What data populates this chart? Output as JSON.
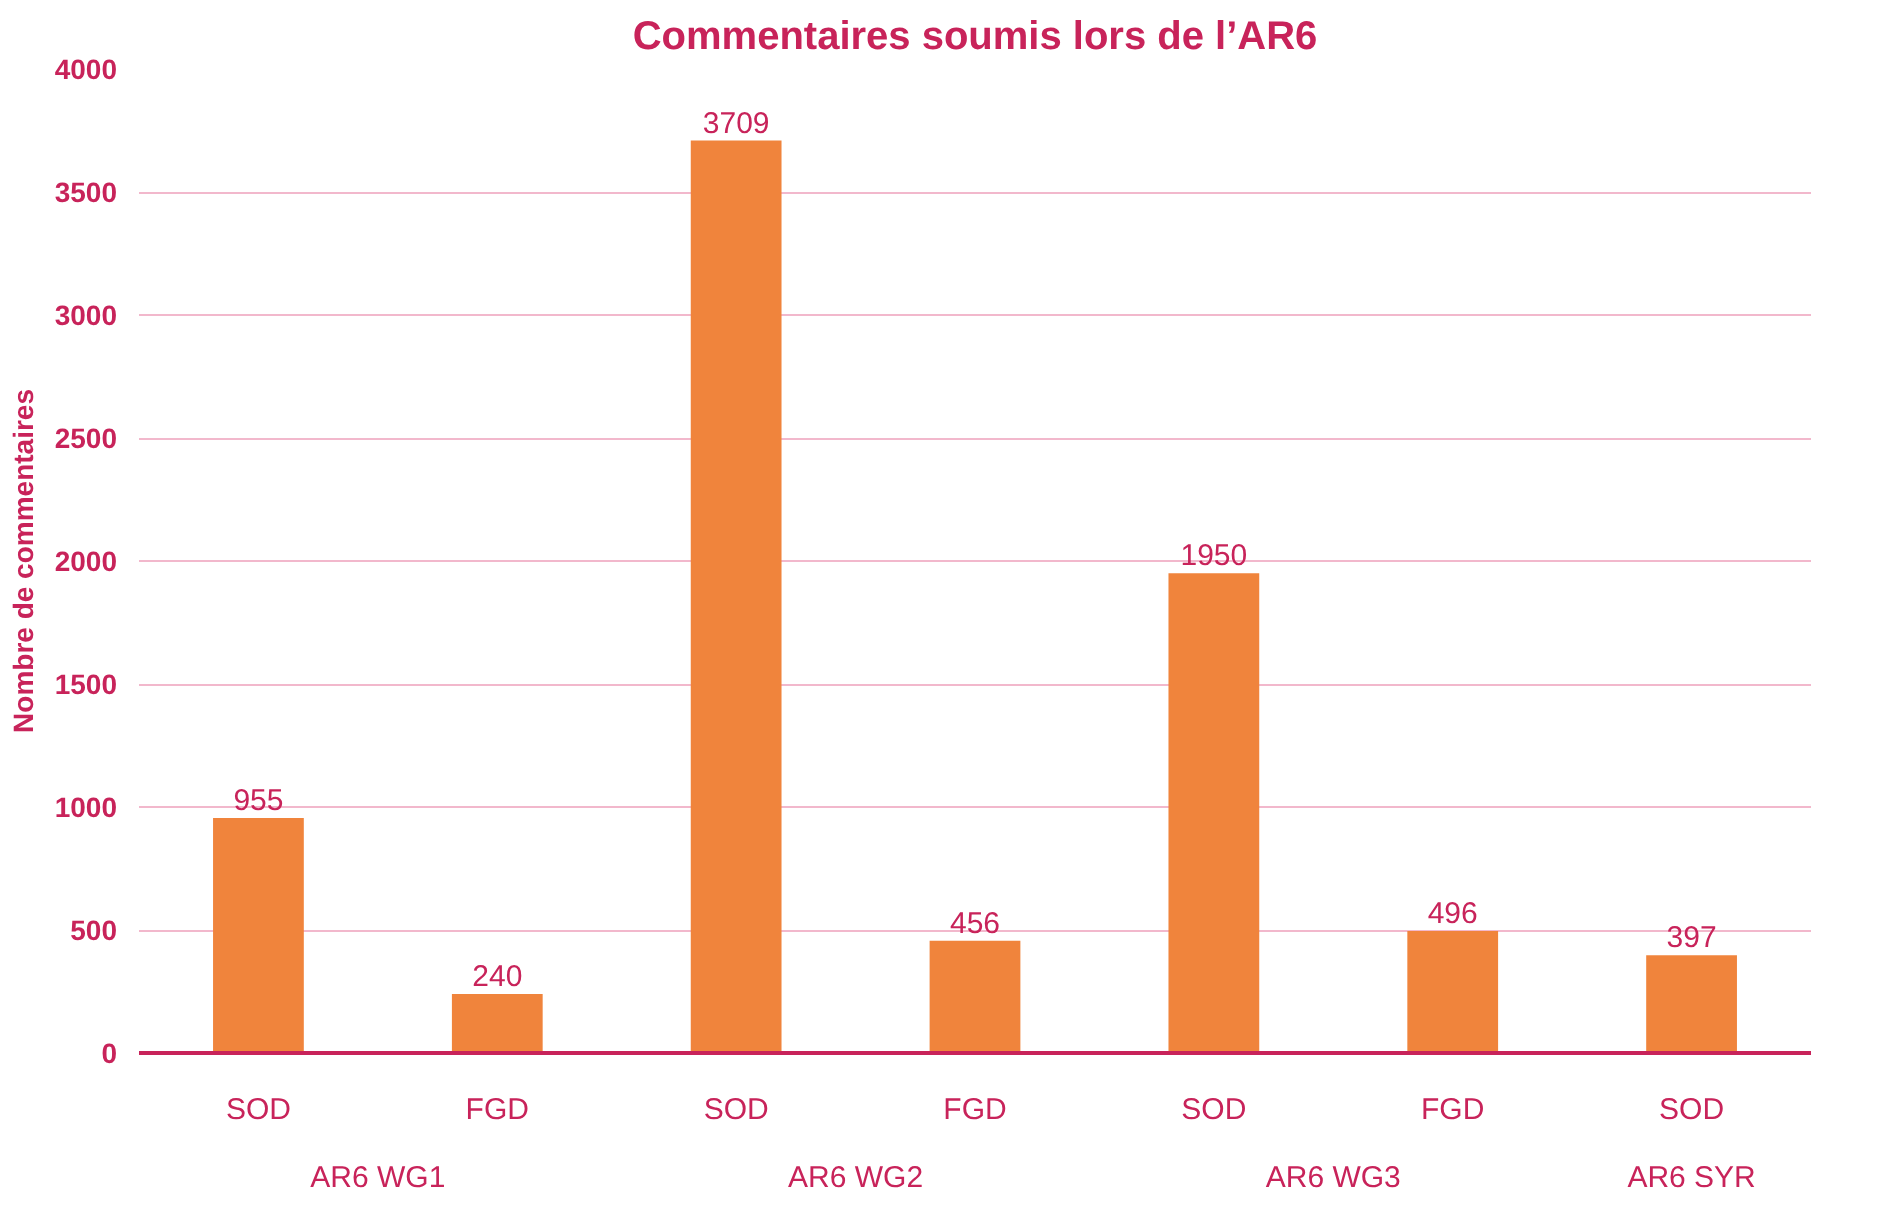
{
  "chart_data": {
    "type": "bar",
    "title": "Commentaires soumis lors de l’AR6",
    "ylabel": "Nombre de commentaires",
    "categories": [
      "SOD",
      "FGD",
      "SOD",
      "FGD",
      "SOD",
      "FGD",
      "SOD"
    ],
    "values": [
      955,
      240,
      3709,
      456,
      1950,
      496,
      397
    ],
    "color": "#f0843c",
    "data_labels": true,
    "annotations": [
      "AR6 WG1",
      "AR6 WG2",
      "AR6 WG3",
      "AR6 SYR"
    ],
    "ylim": [
      0,
      4000
    ],
    "yticks": [
      0,
      500,
      1000,
      1500,
      2000,
      2500,
      3000,
      3500,
      4000
    ],
    "grid": "y"
  }
}
